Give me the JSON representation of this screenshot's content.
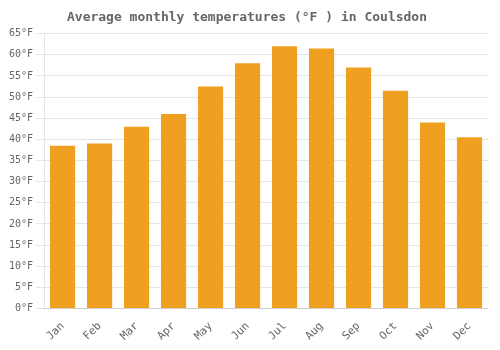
{
  "chart_data": {
    "type": "bar",
    "title": "Average monthly temperatures (°F ) in Coulsdon",
    "categories": [
      "Jan",
      "Feb",
      "Mar",
      "Apr",
      "May",
      "Jun",
      "Jul",
      "Aug",
      "Sep",
      "Oct",
      "Nov",
      "Dec"
    ],
    "values": [
      38.5,
      39.0,
      43.0,
      46.0,
      52.5,
      58.0,
      62.0,
      61.5,
      57.0,
      51.5,
      44.0,
      40.5
    ],
    "color": "#F0A020",
    "ylim": [
      0,
      65
    ],
    "yticks": [
      {
        "value": 0,
        "label": "0°F"
      },
      {
        "value": 5,
        "label": "5°F"
      },
      {
        "value": 10,
        "label": "10°F"
      },
      {
        "value": 15,
        "label": "15°F"
      },
      {
        "value": 20,
        "label": "20°F"
      },
      {
        "value": 25,
        "label": "25°F"
      },
      {
        "value": 30,
        "label": "30°F"
      },
      {
        "value": 35,
        "label": "35°F"
      },
      {
        "value": 40,
        "label": "40°F"
      },
      {
        "value": 45,
        "label": "45°F"
      },
      {
        "value": 50,
        "label": "50°F"
      },
      {
        "value": 55,
        "label": "55°F"
      },
      {
        "value": 60,
        "label": "60°F"
      },
      {
        "value": 65,
        "label": "65°F"
      }
    ],
    "grid": true
  }
}
